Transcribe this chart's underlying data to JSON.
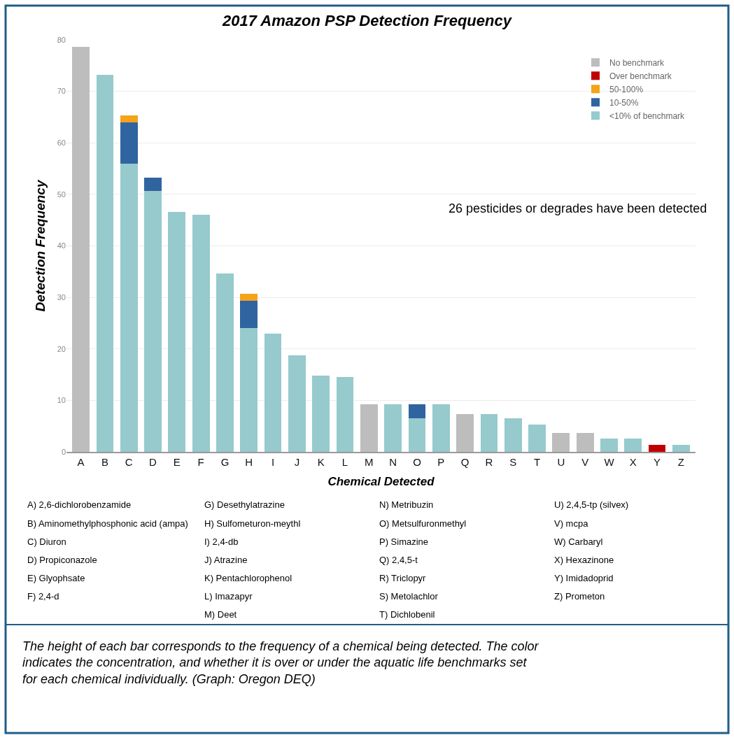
{
  "chart_data": {
    "type": "bar",
    "stacked": true,
    "title": "2017 Amazon PSP Detection Frequency",
    "xlabel": "Chemical Detected",
    "ylabel": "Detection Frequency",
    "categories": [
      "A",
      "B",
      "C",
      "D",
      "E",
      "F",
      "G",
      "H",
      "I",
      "J",
      "K",
      "L",
      "M",
      "N",
      "O",
      "P",
      "Q",
      "R",
      "S",
      "T",
      "U",
      "V",
      "W",
      "X",
      "Y",
      "Z"
    ],
    "series": [
      {
        "name": "<10% of benchmark",
        "color": "#96cacd",
        "values": [
          null,
          73.2,
          56.0,
          50.7,
          46.6,
          46.1,
          34.6,
          24.0,
          23.0,
          18.7,
          14.8,
          14.6,
          null,
          9.2,
          6.5,
          9.2,
          null,
          7.3,
          6.5,
          5.3,
          null,
          null,
          2.6,
          2.6,
          null,
          1.3
        ]
      },
      {
        "name": "10-50%",
        "color": "#2f64a0",
        "values": [
          null,
          null,
          8.0,
          2.6,
          null,
          null,
          null,
          5.3,
          null,
          null,
          null,
          null,
          null,
          null,
          2.7,
          null,
          null,
          null,
          null,
          null,
          null,
          null,
          null,
          null,
          null,
          null
        ]
      },
      {
        "name": "50-100%",
        "color": "#f5a31a",
        "values": [
          null,
          null,
          1.3,
          null,
          null,
          null,
          null,
          1.4,
          null,
          null,
          null,
          null,
          null,
          null,
          null,
          null,
          null,
          null,
          null,
          null,
          null,
          null,
          null,
          null,
          null,
          null
        ]
      },
      {
        "name": "Over benchmark",
        "color": "#c00000",
        "values": [
          null,
          null,
          null,
          null,
          null,
          null,
          null,
          null,
          null,
          null,
          null,
          null,
          null,
          null,
          null,
          null,
          null,
          null,
          null,
          null,
          null,
          null,
          null,
          null,
          1.3,
          null
        ]
      },
      {
        "name": "No benchmark",
        "color": "#bdbdbd",
        "values": [
          78.6,
          null,
          null,
          null,
          null,
          null,
          null,
          null,
          null,
          null,
          null,
          null,
          9.2,
          null,
          null,
          null,
          7.3,
          null,
          null,
          null,
          3.7,
          3.7,
          null,
          null,
          null,
          null
        ]
      }
    ],
    "ylim": [
      0,
      80
    ],
    "yticks": [
      0,
      10,
      20,
      30,
      40,
      50,
      60,
      70,
      80
    ],
    "grid": "y",
    "legend": "top right",
    "tick_labels": "xy",
    "annotations": [
      "26 pesticides or degrades have been detected",
      "A) 2,6-dichlorobenzamide",
      "B) Aminomethylphosphonic acid (ampa)",
      "C) Diuron",
      "D) Propiconazole",
      "E) Glyophsate",
      "F) 2,4-d",
      "G) Desethylatrazine",
      "H) Sulfometuron-meythl",
      "I) 2,4-db",
      "J) Atrazine",
      "K) Pentachlorophenol",
      "L) Imazapyr",
      "M) Deet",
      "N) Metribuzin",
      "O) Metsulfuronmethyl",
      "P) Simazine",
      "Q) 2,4,5-t",
      "R) Triclopyr",
      "S) Metolachlor",
      "T) Dichlobenil",
      "U) 2,4,5-tp (silvex)",
      "V) mcpa",
      "W) Carbaryl",
      "X) Hexazinone",
      "Y) Imidadoprid",
      "Z) Prometon",
      "The height of each bar corresponds to the frequency of a chemical being detected. The color indicates the concentration, and whether it is over or under the aquatic life benchmarks set for each chemical individually. (Graph: Oregon DEQ)"
    ]
  }
}
